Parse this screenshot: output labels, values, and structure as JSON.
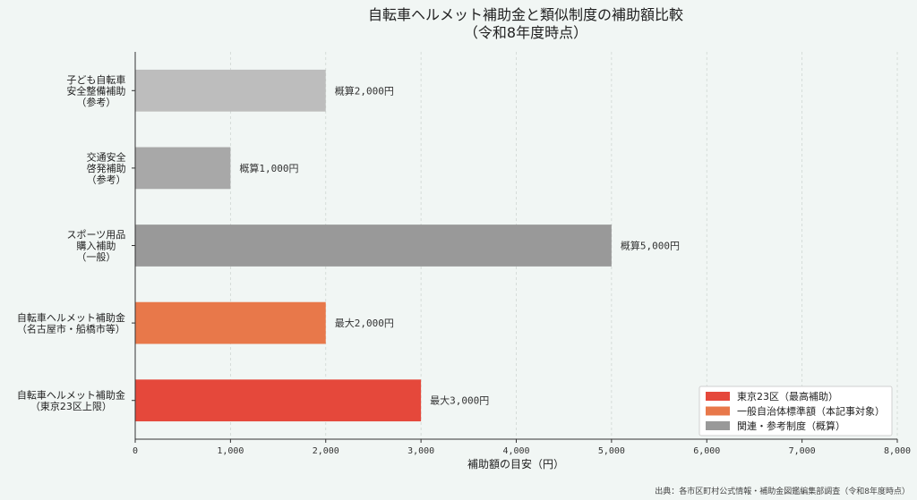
{
  "chart_data": {
    "type": "bar",
    "orientation": "horizontal",
    "title": "自転車ヘルメット補助金と類似制度の補助額比較",
    "subtitle": "（令和8年度時点）",
    "xlabel": "補助額の目安（円）",
    "xlim": [
      0,
      8000
    ],
    "xticks": [
      "0",
      "1,000",
      "2,000",
      "3,000",
      "4,000",
      "5,000",
      "6,000",
      "7,000",
      "8,000"
    ],
    "grid": true,
    "legend_position": "bottom-right",
    "categories": [
      [
        "子ども自転車",
        "安全整備補助",
        "（参考）"
      ],
      [
        "交通安全",
        "啓発補助",
        "（参考）"
      ],
      [
        "スポーツ用品",
        "購入補助",
        "（一般）"
      ],
      [
        "自転車ヘルメット補助金",
        "（名古屋市・船橋市等）"
      ],
      [
        "自転車ヘルメット補助金",
        "（東京23区上限）"
      ]
    ],
    "values": [
      2000,
      1000,
      5000,
      2000,
      3000
    ],
    "value_labels": [
      "概算2,000円",
      "概算1,000円",
      "概算5,000円",
      "最大2,000円",
      "最大3,000円"
    ],
    "colors": [
      "#bdbdbd",
      "#a8a8a8",
      "#999999",
      "#e8784a",
      "#e5483b"
    ],
    "legend": [
      {
        "label": "東京23区（最高補助）",
        "color": "#e5483b"
      },
      {
        "label": "一般自治体標準額（本記事対象）",
        "color": "#e8784a"
      },
      {
        "label": "関連・参考制度（概算）",
        "color": "#999999"
      }
    ]
  },
  "footer": {
    "source": "出典：各市区町村公式情報・補助金図鑑編集部調査（令和8年度時点）"
  }
}
